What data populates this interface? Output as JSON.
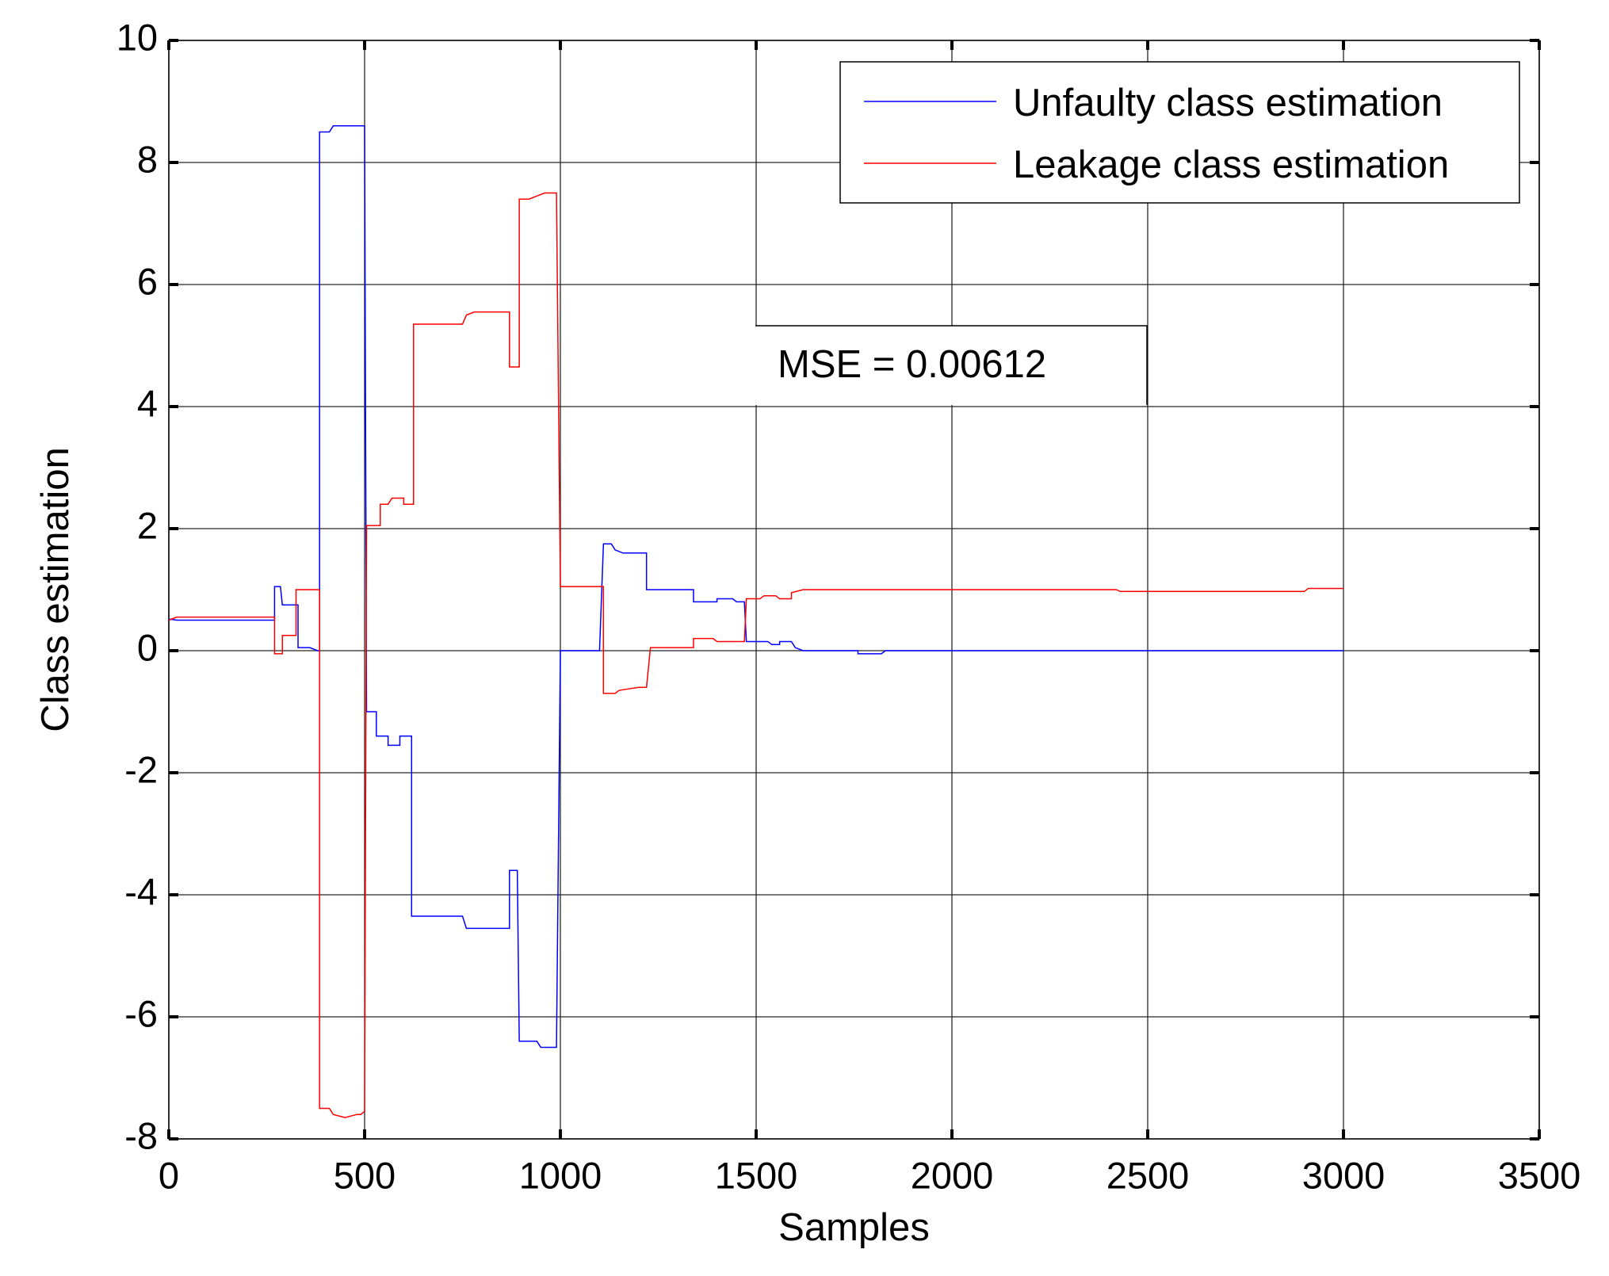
{
  "chart_data": {
    "type": "line",
    "xlabel": "Samples",
    "ylabel": "Class estimation",
    "annotation": "MSE = 0.00612",
    "xlim": [
      0,
      3500
    ],
    "xticks": [
      0,
      500,
      1000,
      1500,
      2000,
      2500,
      3000,
      3500
    ],
    "ylim": [
      -8,
      10
    ],
    "yticks": [
      -8,
      -6,
      -4,
      -2,
      0,
      2,
      4,
      6,
      8,
      10
    ],
    "grid": true,
    "legend": "upper right",
    "series": [
      {
        "name": "Unfaulty class estimation",
        "color": "#0000ff",
        "x": [
          0,
          20,
          270,
          270,
          285,
          290,
          330,
          330,
          360,
          380,
          385,
          385,
          410,
          420,
          500,
          505,
          530,
          530,
          560,
          560,
          590,
          590,
          620,
          620,
          750,
          760,
          870,
          870,
          890,
          895,
          940,
          950,
          990,
          1000,
          1100,
          1110,
          1130,
          1140,
          1160,
          1220,
          1220,
          1340,
          1340,
          1400,
          1400,
          1440,
          1450,
          1470,
          1475,
          1530,
          1540,
          1560,
          1560,
          1590,
          1600,
          1620,
          1760,
          1760,
          1820,
          1830,
          3000
        ],
        "values": [
          0.52,
          0.5,
          0.5,
          1.05,
          1.05,
          0.75,
          0.75,
          0.05,
          0.05,
          0,
          0,
          8.5,
          8.5,
          8.6,
          8.6,
          -1.0,
          -1.0,
          -1.4,
          -1.4,
          -1.55,
          -1.55,
          -1.4,
          -1.4,
          -4.35,
          -4.35,
          -4.55,
          -4.55,
          -3.6,
          -3.6,
          -6.4,
          -6.4,
          -6.5,
          -6.5,
          0,
          0,
          1.75,
          1.75,
          1.65,
          1.6,
          1.6,
          1.0,
          1.0,
          0.8,
          0.8,
          0.85,
          0.85,
          0.8,
          0.8,
          0.15,
          0.15,
          0.1,
          0.1,
          0.15,
          0.15,
          0.05,
          0,
          0,
          -0.05,
          -0.05,
          0,
          0
        ]
      },
      {
        "name": "Leakage class estimation",
        "color": "#ff0000",
        "x": [
          0,
          20,
          270,
          270,
          290,
          290,
          325,
          325,
          385,
          385,
          410,
          420,
          450,
          480,
          490,
          500,
          505,
          540,
          540,
          560,
          570,
          600,
          600,
          625,
          625,
          750,
          760,
          780,
          870,
          870,
          895,
          895,
          920,
          940,
          960,
          990,
          1000,
          1110,
          1110,
          1140,
          1150,
          1200,
          1220,
          1230,
          1340,
          1340,
          1390,
          1400,
          1470,
          1475,
          1510,
          1520,
          1550,
          1560,
          1590,
          1590,
          1620,
          2420,
          2430,
          2900,
          2910,
          3000
        ],
        "values": [
          0.5,
          0.55,
          0.55,
          -0.05,
          -0.05,
          0.25,
          0.25,
          1.0,
          1.0,
          -7.5,
          -7.5,
          -7.6,
          -7.65,
          -7.6,
          -7.6,
          -7.55,
          2.05,
          2.05,
          2.4,
          2.4,
          2.5,
          2.5,
          2.4,
          2.4,
          5.35,
          5.35,
          5.5,
          5.55,
          5.55,
          4.65,
          4.65,
          7.4,
          7.4,
          7.45,
          7.5,
          7.5,
          1.05,
          1.05,
          -0.7,
          -0.7,
          -0.65,
          -0.6,
          -0.6,
          0.05,
          0.05,
          0.2,
          0.2,
          0.15,
          0.15,
          0.85,
          0.85,
          0.9,
          0.9,
          0.85,
          0.85,
          0.95,
          1.0,
          1.0,
          0.97,
          0.97,
          1.02,
          1.02
        ]
      }
    ]
  }
}
